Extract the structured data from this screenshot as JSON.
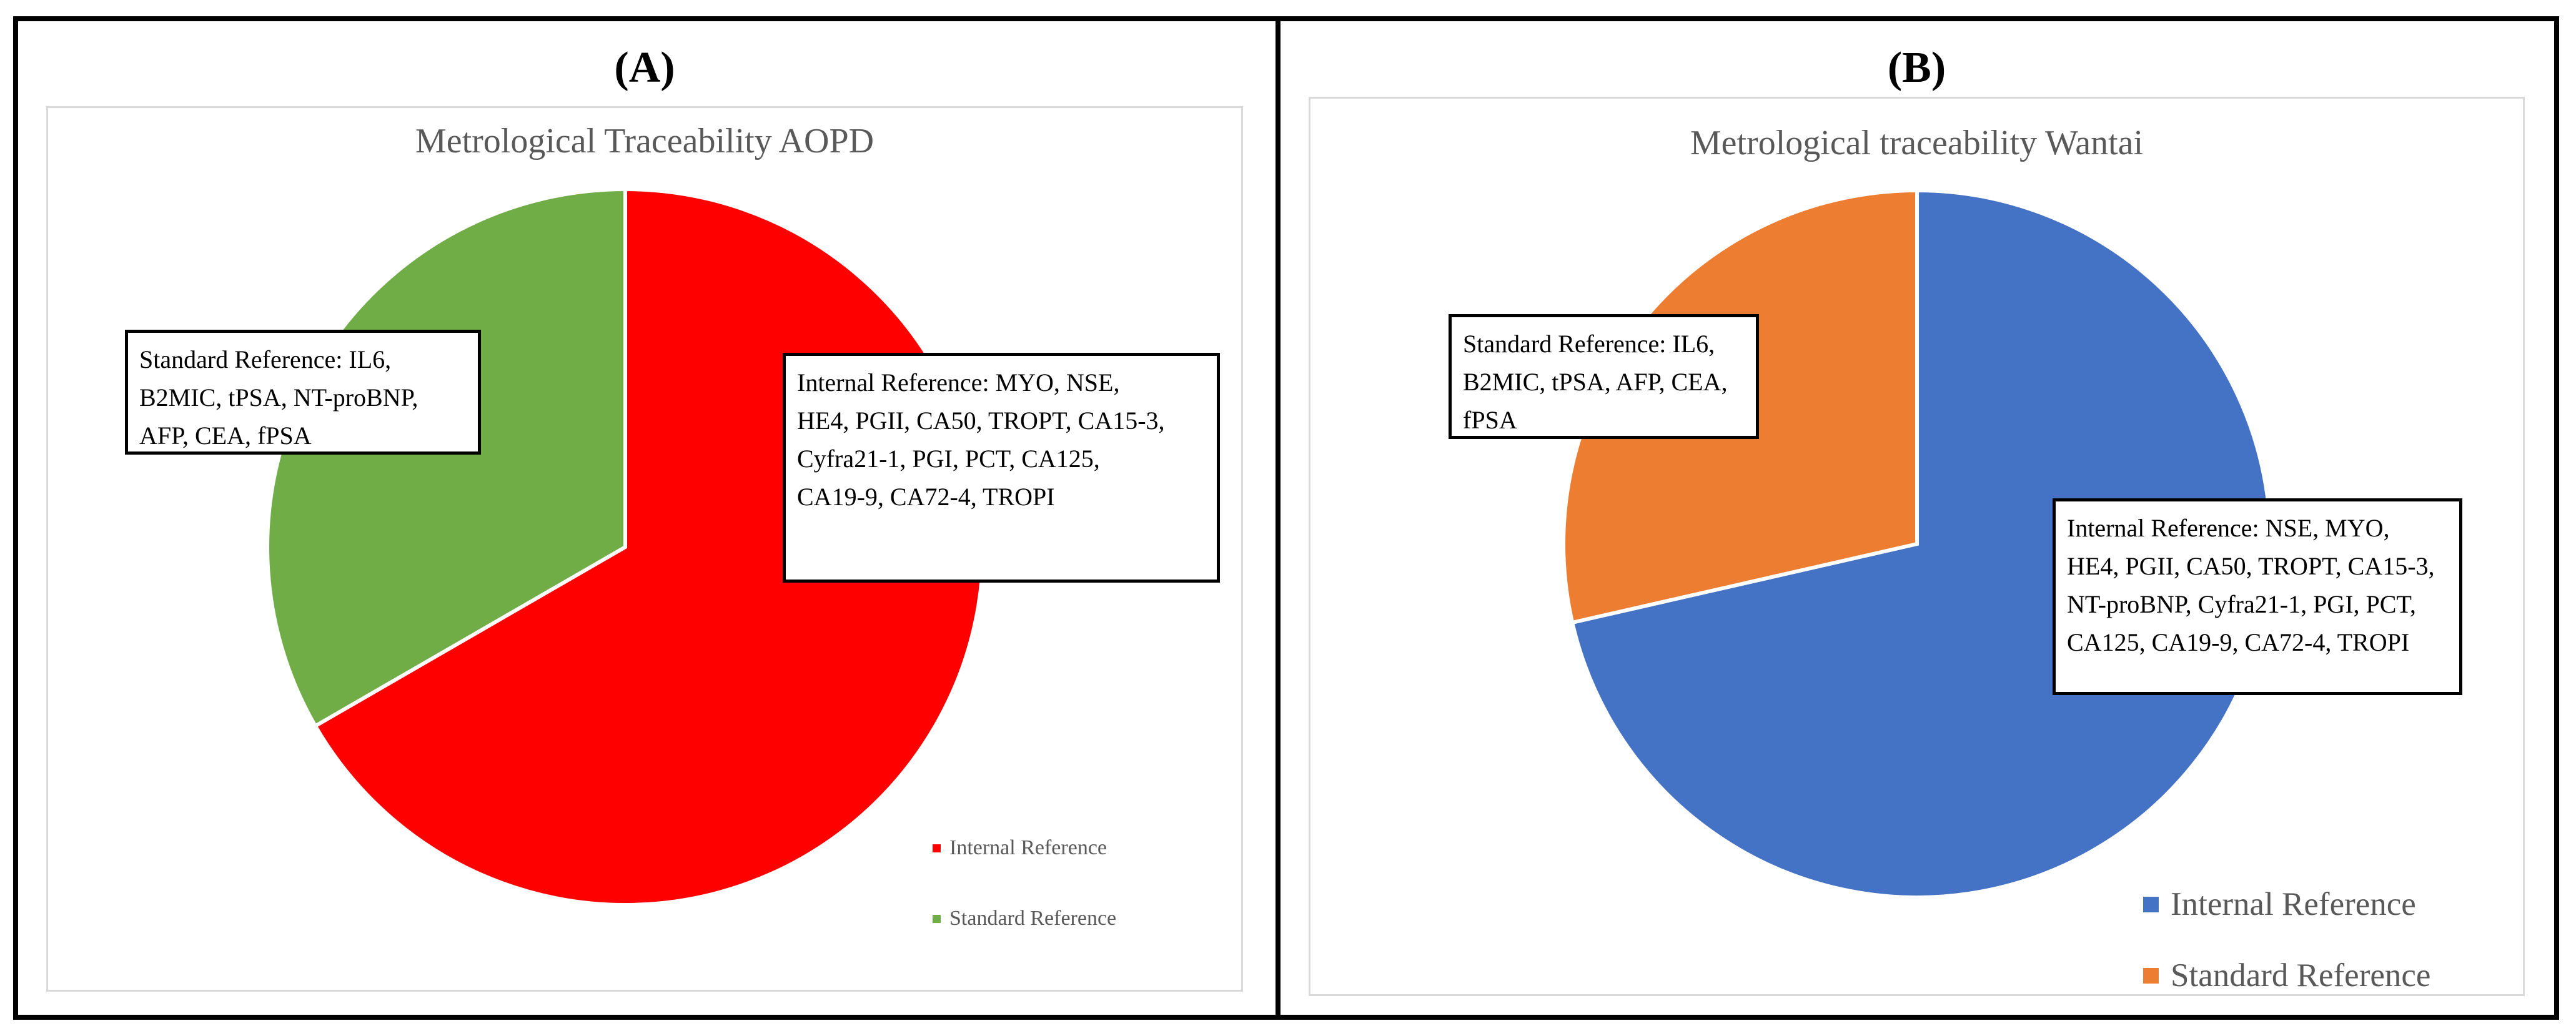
{
  "figure": {
    "panels": [
      {
        "id": "A",
        "label": "(A)",
        "title": "Metrological Traceability AOPD",
        "callout_left": "Standard Reference: IL6,\nB2MIC, tPSA, NT-proBNP,\nAFP, CEA, fPSA",
        "callout_right": "Internal Reference: MYO, NSE,\nHE4, PGII, CA50, TROPT, CA15-3,\nCyfra21-1, PGI, PCT, CA125,\nCA19-9, CA72-4, TROPI",
        "legend": [
          {
            "label": "Internal Reference",
            "color": "#ff0000"
          },
          {
            "label": "Standard Reference",
            "color": "#70ad47"
          }
        ]
      },
      {
        "id": "B",
        "label": "(B)",
        "title": "Metrological traceability Wantai",
        "callout_left": "Standard Reference: IL6,\nB2MIC, tPSA, AFP, CEA,\nfPSA",
        "callout_right": "Internal Reference: NSE, MYO,\nHE4, PGII, CA50, TROPT, CA15-3,\nNT-proBNP, Cyfra21-1, PGI, PCT,\nCA125, CA19-9, CA72-4, TROPI",
        "legend": [
          {
            "label": "Internal Reference",
            "color": "#4472c4"
          },
          {
            "label": "Standard Reference",
            "color": "#ed7d31"
          }
        ]
      }
    ],
    "colors": {
      "frame_border": "#000000",
      "chart_area_border": "#d9d9d9",
      "title_text": "#595959",
      "legend_text": "#595959",
      "callout_border": "#000000",
      "slice_separator": "#ffffff"
    }
  },
  "chart_data": [
    {
      "type": "pie",
      "title": "Metrological Traceability AOPD",
      "categories": [
        "Internal Reference",
        "Standard Reference"
      ],
      "values": [
        14,
        7
      ],
      "percentages": [
        66.7,
        33.3
      ],
      "colors": [
        "#ff0000",
        "#70ad47"
      ],
      "start_angle_deg": 0,
      "direction": "clockwise",
      "legend_position": "bottom-right",
      "grid": false,
      "annotations": [
        "Standard Reference: IL6, B2MIC, tPSA, NT-proBNP, AFP, CEA, fPSA",
        "Internal Reference: MYO, NSE, HE4, PGII, CA50, TROPT, CA15-3, Cyfra21-1, PGI, PCT, CA125, CA19-9, CA72-4, TROPI"
      ],
      "segment_items": {
        "Internal Reference": [
          "MYO",
          "NSE",
          "HE4",
          "PGII",
          "CA50",
          "TROPT",
          "CA15-3",
          "Cyfra21-1",
          "PGI",
          "PCT",
          "CA125",
          "CA19-9",
          "CA72-4",
          "TROPI"
        ],
        "Standard Reference": [
          "IL6",
          "B2MIC",
          "tPSA",
          "NT-proBNP",
          "AFP",
          "CEA",
          "fPSA"
        ]
      }
    },
    {
      "type": "pie",
      "title": "Metrological traceability Wantai",
      "categories": [
        "Internal Reference",
        "Standard Reference"
      ],
      "values": [
        15,
        6
      ],
      "percentages": [
        71.4,
        28.6
      ],
      "colors": [
        "#4472c4",
        "#ed7d31"
      ],
      "start_angle_deg": 0,
      "direction": "clockwise",
      "legend_position": "bottom-right",
      "grid": false,
      "annotations": [
        "Standard Reference: IL6, B2MIC, tPSA, AFP, CEA, fPSA",
        "Internal Reference: NSE, MYO, HE4, PGII, CA50, TROPT, CA15-3, NT-proBNP, Cyfra21-1, PGI, PCT, CA125, CA19-9, CA72-4, TROPI"
      ],
      "segment_items": {
        "Internal Reference": [
          "NSE",
          "MYO",
          "HE4",
          "PGII",
          "CA50",
          "TROPT",
          "CA15-3",
          "NT-proBNP",
          "Cyfra21-1",
          "PGI",
          "PCT",
          "CA125",
          "CA19-9",
          "CA72-4",
          "TROPI"
        ],
        "Standard Reference": [
          "IL6",
          "B2MIC",
          "tPSA",
          "AFP",
          "CEA",
          "fPSA"
        ]
      }
    }
  ]
}
